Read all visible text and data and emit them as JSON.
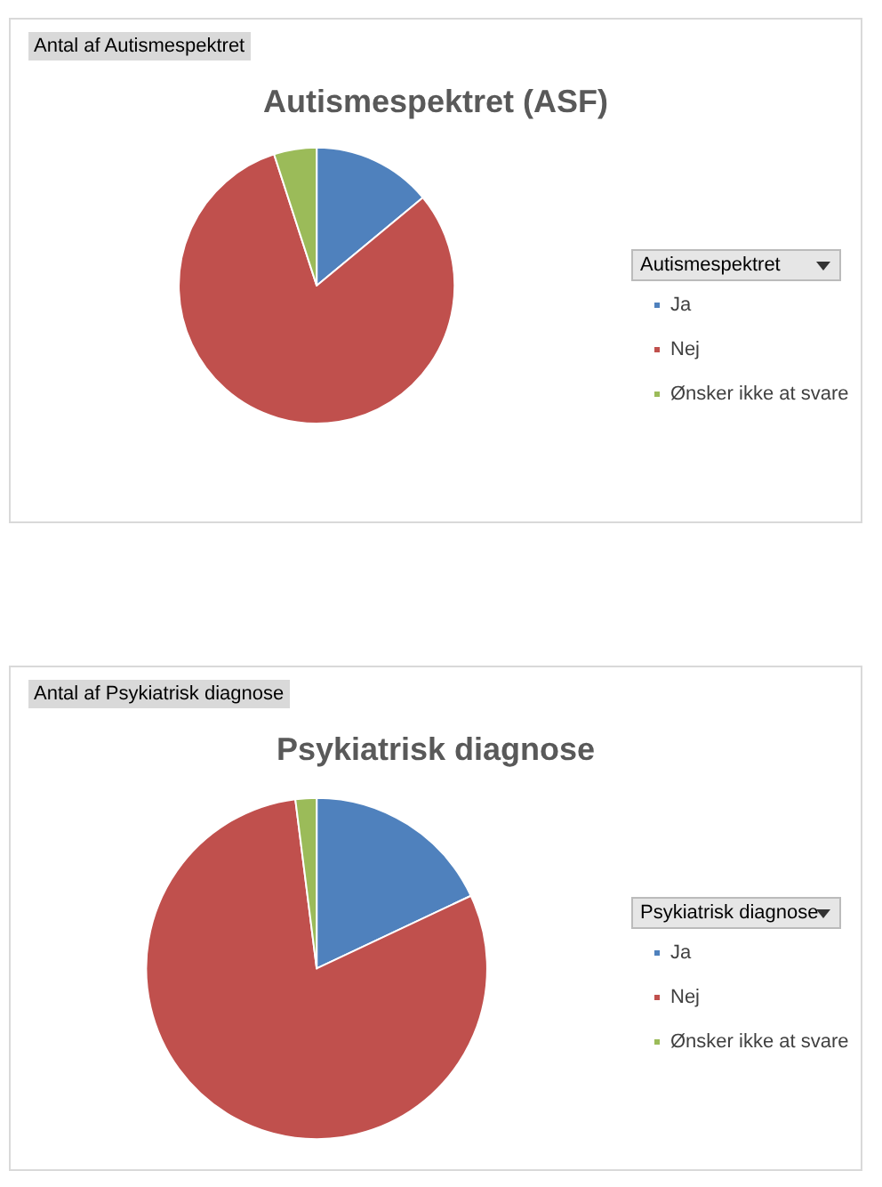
{
  "chart_data": [
    {
      "type": "pie",
      "title": "Autismespektret (ASF)",
      "annotations": [
        "Antal af Autismespektret"
      ],
      "legend_title": "Autismespektret",
      "legend": "right",
      "categories": [
        "Ja",
        "Nej",
        "Ønsker ikke at svare"
      ],
      "values": [
        14,
        81,
        5
      ],
      "colors": [
        "#4f81bd",
        "#c0504d",
        "#9bbb59"
      ]
    },
    {
      "type": "pie",
      "title": "Psykiatrisk diagnose",
      "annotations": [
        "Antal af Psykiatrisk diagnose"
      ],
      "legend_title": "Psykiatrisk diagnose",
      "legend": "right",
      "categories": [
        "Ja",
        "Nej",
        "Ønsker ikke at svare"
      ],
      "values": [
        18,
        80,
        2
      ],
      "colors": [
        "#4f81bd",
        "#c0504d",
        "#9bbb59"
      ]
    }
  ]
}
